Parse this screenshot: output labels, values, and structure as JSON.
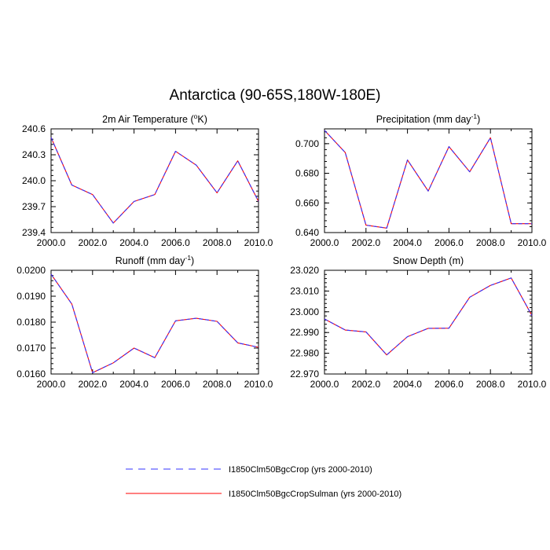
{
  "figure": {
    "title": "Antarctica (90-65S,180W-180E)"
  },
  "legend": [
    {
      "name": "I1850Clm50BgcCrop (yrs 2000-2010)",
      "color": "#3333ff",
      "style": "dashed"
    },
    {
      "name": "I1850Clm50BgcCropSulman (yrs 2000-2010)",
      "color": "#ff0000",
      "style": "solid"
    }
  ],
  "chart_data": [
    {
      "type": "line",
      "title_parts": [
        "2m Air Temperature (",
        "o",
        "K)"
      ],
      "x": [
        2000,
        2001,
        2002,
        2003,
        2004,
        2005,
        2006,
        2007,
        2008,
        2009,
        2010
      ],
      "xlim": [
        2000,
        2010
      ],
      "ylim": [
        239.4,
        240.6
      ],
      "xticks": [
        "2000.0",
        "2002.0",
        "2004.0",
        "2006.0",
        "2008.0",
        "2010.0"
      ],
      "yticks": [
        "239.4",
        "239.7",
        "240.0",
        "240.3",
        "240.6"
      ],
      "ytick_values": [
        239.4,
        239.7,
        240.0,
        240.3,
        240.6
      ],
      "series": [
        {
          "name": "I1850Clm50BgcCrop (yrs 2000-2010)",
          "values": [
            240.5,
            239.95,
            239.84,
            239.51,
            239.76,
            239.84,
            240.34,
            240.18,
            239.86,
            240.23,
            239.76
          ]
        },
        {
          "name": "I1850Clm50BgcCropSulman (yrs 2000-2010)",
          "values": [
            240.5,
            239.95,
            239.84,
            239.51,
            239.76,
            239.84,
            240.34,
            240.18,
            239.86,
            240.23,
            239.76
          ]
        }
      ]
    },
    {
      "type": "line",
      "title_parts": [
        "Precipitation (mm day",
        "-1",
        ")"
      ],
      "x": [
        2000,
        2001,
        2002,
        2003,
        2004,
        2005,
        2006,
        2007,
        2008,
        2009,
        2010
      ],
      "xlim": [
        2000,
        2010
      ],
      "ylim": [
        0.64,
        0.71
      ],
      "xticks": [
        "2000.0",
        "2002.0",
        "2004.0",
        "2006.0",
        "2008.0",
        "2010.0"
      ],
      "yticks": [
        "0.640",
        "0.660",
        "0.680",
        "0.700"
      ],
      "ytick_values": [
        0.64,
        0.66,
        0.68,
        0.7
      ],
      "series": [
        {
          "name": "I1850Clm50BgcCrop (yrs 2000-2010)",
          "values": [
            0.709,
            0.694,
            0.645,
            0.643,
            0.689,
            0.668,
            0.698,
            0.681,
            0.704,
            0.646,
            0.646
          ]
        },
        {
          "name": "I1850Clm50BgcCropSulman (yrs 2000-2010)",
          "values": [
            0.709,
            0.694,
            0.645,
            0.643,
            0.689,
            0.668,
            0.698,
            0.681,
            0.704,
            0.646,
            0.646
          ]
        }
      ]
    },
    {
      "type": "line",
      "title_parts": [
        "Runoff (mm day",
        "-1",
        ")"
      ],
      "x": [
        2000,
        2001,
        2002,
        2003,
        2004,
        2005,
        2006,
        2007,
        2008,
        2009,
        2010
      ],
      "xlim": [
        2000,
        2010
      ],
      "ylim": [
        0.016,
        0.02
      ],
      "xticks": [
        "2000.0",
        "2002.0",
        "2004.0",
        "2006.0",
        "2008.0",
        "2010.0"
      ],
      "yticks": [
        "0.0160",
        "0.0170",
        "0.0180",
        "0.0190",
        "0.0200"
      ],
      "ytick_values": [
        0.016,
        0.017,
        0.018,
        0.019,
        0.02
      ],
      "series": [
        {
          "name": "I1850Clm50BgcCrop (yrs 2000-2010)",
          "values": [
            0.01985,
            0.0187,
            0.01605,
            0.01643,
            0.017,
            0.01663,
            0.01805,
            0.01815,
            0.01803,
            0.0172,
            0.01703
          ]
        },
        {
          "name": "I1850Clm50BgcCropSulman (yrs 2000-2010)",
          "values": [
            0.01985,
            0.0187,
            0.01605,
            0.01643,
            0.017,
            0.01663,
            0.01805,
            0.01815,
            0.01803,
            0.0172,
            0.01703
          ]
        }
      ]
    },
    {
      "type": "line",
      "title_parts": [
        "Snow Depth (m)"
      ],
      "x": [
        2000,
        2001,
        2002,
        2003,
        2004,
        2005,
        2006,
        2007,
        2008,
        2009,
        2010
      ],
      "xlim": [
        2000,
        2010
      ],
      "ylim": [
        22.97,
        23.02
      ],
      "xticks": [
        "2000.0",
        "2002.0",
        "2004.0",
        "2006.0",
        "2008.0",
        "2010.0"
      ],
      "yticks": [
        "22.970",
        "22.980",
        "22.990",
        "23.000",
        "23.010",
        "23.020"
      ],
      "ytick_values": [
        22.97,
        22.98,
        22.99,
        23.0,
        23.01,
        23.02
      ],
      "series": [
        {
          "name": "I1850Clm50BgcCrop (yrs 2000-2010)",
          "values": [
            22.9965,
            22.9912,
            22.9903,
            22.9792,
            22.988,
            22.992,
            22.9921,
            23.007,
            23.0127,
            23.0163,
            22.9982
          ]
        },
        {
          "name": "I1850Clm50BgcCropSulman (yrs 2000-2010)",
          "values": [
            22.9965,
            22.9912,
            22.9903,
            22.9792,
            22.988,
            22.992,
            22.9921,
            23.007,
            23.0127,
            23.0163,
            22.9982
          ]
        }
      ]
    }
  ]
}
